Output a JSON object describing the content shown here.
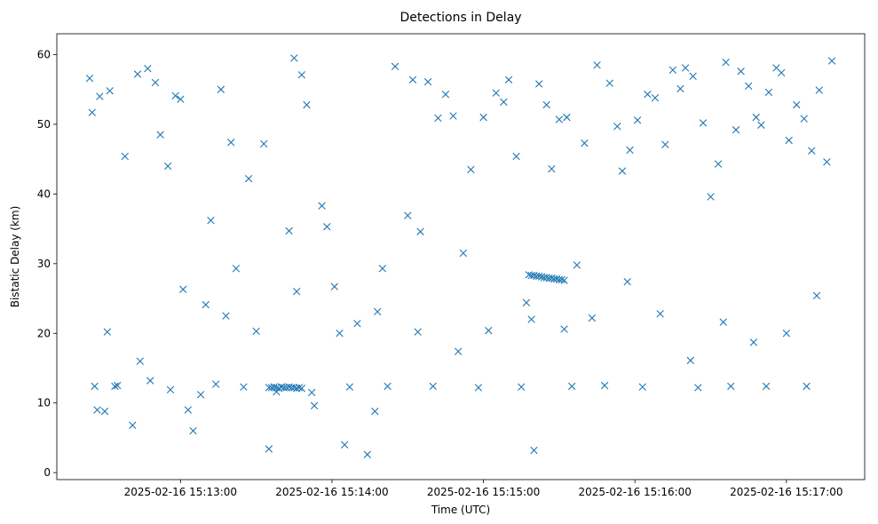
{
  "chart_data": {
    "type": "scatter",
    "title": "Detections in Delay",
    "xlabel": "Time (UTC)",
    "ylabel": "Bistatic Delay (km)",
    "x_range": [
      "2025-02-16 15:12:11",
      "2025-02-16 15:17:31"
    ],
    "ylim": [
      -1,
      63
    ],
    "xticks": [
      "2025-02-16 15:13:00",
      "2025-02-16 15:14:00",
      "2025-02-16 15:15:00",
      "2025-02-16 15:16:00",
      "2025-02-16 15:17:00"
    ],
    "yticks": [
      0,
      10,
      20,
      30,
      40,
      50,
      60
    ],
    "grid": false,
    "marker": "x",
    "color": "#1f77b4",
    "series": [
      {
        "x": [
          "2025-02-16 15:12:24",
          "2025-02-16 15:12:25",
          "2025-02-16 15:12:27",
          "2025-02-16 15:12:28",
          "2025-02-16 15:12:30",
          "2025-02-16 15:12:32",
          "2025-02-16 15:12:35",
          "2025-02-16 15:12:38",
          "2025-02-16 15:12:43",
          "2025-02-16 15:12:47",
          "2025-02-16 15:12:50",
          "2025-02-16 15:12:52",
          "2025-02-16 15:12:55",
          "2025-02-16 15:12:58",
          "2025-02-16 15:13:00",
          "2025-02-16 15:13:05",
          "2025-02-16 15:13:10",
          "2025-02-16 15:13:12",
          "2025-02-16 15:13:16",
          "2025-02-16 15:13:20",
          "2025-02-16 15:13:22",
          "2025-02-16 15:13:27",
          "2025-02-16 15:13:33",
          "2025-02-16 15:13:35",
          "2025-02-16 15:13:40",
          "2025-02-16 15:13:43",
          "2025-02-16 15:13:45",
          "2025-02-16 15:13:48",
          "2025-02-16 15:13:50",
          "2025-02-16 15:13:53",
          "2025-02-16 15:13:56",
          "2025-02-16 15:13:58",
          "2025-02-16 15:14:01",
          "2025-02-16 15:14:05",
          "2025-02-16 15:14:10",
          "2025-02-16 15:14:14",
          "2025-02-16 15:14:17",
          "2025-02-16 15:14:20",
          "2025-02-16 15:14:25",
          "2025-02-16 15:14:30",
          "2025-02-16 15:14:32",
          "2025-02-16 15:14:35",
          "2025-02-16 15:14:38",
          "2025-02-16 15:14:42",
          "2025-02-16 15:14:45",
          "2025-02-16 15:14:48",
          "2025-02-16 15:14:52",
          "2025-02-16 15:14:55",
          "2025-02-16 15:15:00",
          "2025-02-16 15:15:05",
          "2025-02-16 15:15:08",
          "2025-02-16 15:15:10",
          "2025-02-16 15:15:13",
          "2025-02-16 15:15:17",
          "2025-02-16 15:15:20",
          "2025-02-16 15:15:22",
          "2025-02-16 15:15:25",
          "2025-02-16 15:15:27",
          "2025-02-16 15:15:30",
          "2025-02-16 15:15:33",
          "2025-02-16 15:15:37",
          "2025-02-16 15:15:40",
          "2025-02-16 15:15:45",
          "2025-02-16 15:15:50",
          "2025-02-16 15:15:53",
          "2025-02-16 15:15:55",
          "2025-02-16 15:15:58",
          "2025-02-16 15:16:01",
          "2025-02-16 15:16:05",
          "2025-02-16 15:16:08",
          "2025-02-16 15:16:12",
          "2025-02-16 15:16:15",
          "2025-02-16 15:16:18",
          "2025-02-16 15:16:20",
          "2025-02-16 15:16:23",
          "2025-02-16 15:16:27",
          "2025-02-16 15:16:30",
          "2025-02-16 15:16:33",
          "2025-02-16 15:16:36",
          "2025-02-16 15:16:40",
          "2025-02-16 15:16:42",
          "2025-02-16 15:16:45",
          "2025-02-16 15:16:48",
          "2025-02-16 15:16:50",
          "2025-02-16 15:16:53",
          "2025-02-16 15:16:56",
          "2025-02-16 15:16:58",
          "2025-02-16 15:17:01",
          "2025-02-16 15:17:04",
          "2025-02-16 15:17:07",
          "2025-02-16 15:17:10",
          "2025-02-16 15:17:13",
          "2025-02-16 15:17:16",
          "2025-02-16 15:17:18",
          "2025-02-16 15:12:26",
          "2025-02-16 15:12:34",
          "2025-02-16 15:12:41",
          "2025-02-16 15:12:48",
          "2025-02-16 15:12:56",
          "2025-02-16 15:13:03",
          "2025-02-16 15:13:08",
          "2025-02-16 15:13:14",
          "2025-02-16 15:13:25",
          "2025-02-16 15:13:38",
          "2025-02-16 15:13:52",
          "2025-02-16 15:14:07",
          "2025-02-16 15:14:22",
          "2025-02-16 15:14:40",
          "2025-02-16 15:14:58",
          "2025-02-16 15:15:15",
          "2025-02-16 15:15:35",
          "2025-02-16 15:15:48",
          "2025-02-16 15:16:03",
          "2025-02-16 15:16:25",
          "2025-02-16 15:16:38",
          "2025-02-16 15:16:52",
          "2025-02-16 15:17:08",
          "2025-02-16 15:12:31",
          "2025-02-16 15:12:44",
          "2025-02-16 15:13:01",
          "2025-02-16 15:13:18",
          "2025-02-16 15:13:30",
          "2025-02-16 15:13:46",
          "2025-02-16 15:14:03",
          "2025-02-16 15:14:18",
          "2025-02-16 15:14:34",
          "2025-02-16 15:14:50",
          "2025-02-16 15:15:02",
          "2025-02-16 15:15:19",
          "2025-02-16 15:15:32",
          "2025-02-16 15:15:43",
          "2025-02-16 15:15:57",
          "2025-02-16 15:16:10",
          "2025-02-16 15:16:22",
          "2025-02-16 15:16:35",
          "2025-02-16 15:16:47",
          "2025-02-16 15:17:00",
          "2025-02-16 15:17:12",
          "2025-02-16 15:13:35",
          "2025-02-16 15:13:36",
          "2025-02-16 15:13:37",
          "2025-02-16 15:13:38",
          "2025-02-16 15:13:39",
          "2025-02-16 15:13:40",
          "2025-02-16 15:13:41",
          "2025-02-16 15:13:42",
          "2025-02-16 15:13:43",
          "2025-02-16 15:13:44",
          "2025-02-16 15:13:45",
          "2025-02-16 15:13:46",
          "2025-02-16 15:13:47",
          "2025-02-16 15:13:48",
          "2025-02-16 15:15:18",
          "2025-02-16 15:15:19",
          "2025-02-16 15:15:20",
          "2025-02-16 15:15:21",
          "2025-02-16 15:15:22",
          "2025-02-16 15:15:23",
          "2025-02-16 15:15:24",
          "2025-02-16 15:15:25",
          "2025-02-16 15:15:26",
          "2025-02-16 15:15:27",
          "2025-02-16 15:15:28",
          "2025-02-16 15:15:29",
          "2025-02-16 15:15:30",
          "2025-02-16 15:15:31",
          "2025-02-16 15:15:32"
        ],
        "y": [
          56.6,
          51.7,
          9.0,
          54.0,
          8.8,
          54.8,
          12.5,
          45.4,
          57.2,
          58.0,
          56.0,
          48.5,
          44.0,
          54.1,
          53.6,
          6.0,
          24.1,
          36.2,
          55.0,
          47.4,
          29.3,
          42.2,
          47.2,
          3.4,
          12.3,
          34.7,
          59.5,
          57.1,
          52.8,
          9.6,
          38.3,
          35.3,
          26.7,
          4.0,
          21.4,
          2.6,
          8.8,
          29.3,
          58.3,
          36.9,
          56.4,
          34.6,
          56.1,
          50.9,
          54.3,
          51.2,
          31.5,
          43.5,
          51.0,
          54.5,
          53.2,
          56.4,
          45.4,
          24.4,
          3.2,
          55.8,
          52.8,
          43.6,
          50.7,
          51.0,
          29.8,
          47.3,
          58.5,
          55.9,
          49.7,
          43.3,
          46.3,
          50.6,
          54.3,
          53.8,
          47.1,
          57.8,
          55.1,
          58.1,
          56.9,
          50.2,
          39.6,
          44.3,
          58.9,
          49.2,
          57.6,
          55.5,
          51.0,
          49.9,
          54.6,
          58.1,
          57.4,
          47.7,
          52.8,
          50.8,
          46.2,
          54.9,
          44.6,
          59.1,
          12.4,
          12.4,
          6.8,
          13.2,
          11.9,
          9.0,
          11.2,
          12.7,
          12.3,
          11.6,
          11.5,
          12.3,
          12.4,
          12.4,
          12.2,
          12.3,
          12.4,
          12.5,
          12.3,
          12.2,
          12.4,
          12.4,
          12.4,
          20.2,
          16.0,
          26.3,
          22.5,
          20.3,
          26.0,
          20.0,
          23.1,
          20.2,
          17.4,
          20.4,
          22.0,
          20.6,
          22.2,
          27.4,
          22.8,
          16.1,
          21.6,
          18.7,
          20.0,
          25.4,
          12.2,
          12.2,
          12.3,
          12.2,
          12.1,
          12.3,
          12.2,
          12.2,
          12.3,
          12.2,
          12.2,
          12.1,
          12.2,
          12.1,
          28.4,
          28.3,
          28.3,
          28.2,
          28.2,
          28.1,
          28.0,
          28.0,
          27.9,
          27.9,
          27.8,
          27.8,
          27.7,
          27.7,
          27.6
        ]
      }
    ]
  }
}
